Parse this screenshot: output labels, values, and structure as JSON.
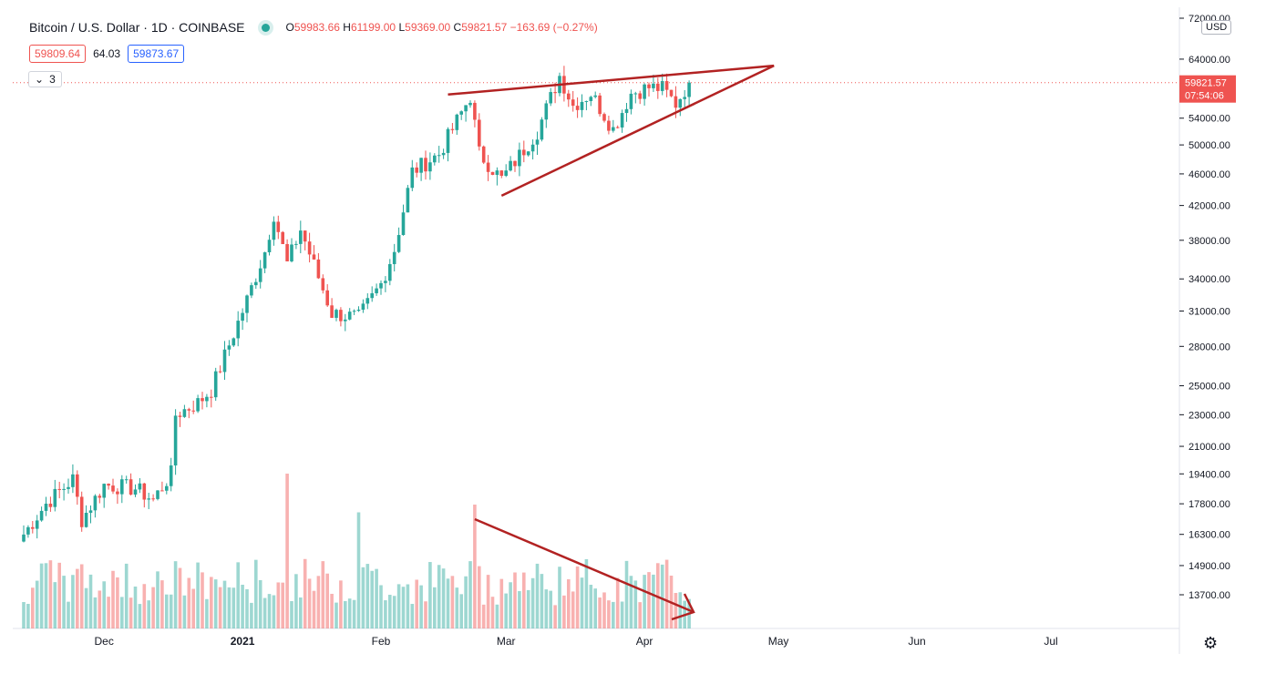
{
  "header": {
    "symbol": "Bitcoin / U.S. Dollar · 1D · COINBASE",
    "open_label": "O",
    "open": "59983.66",
    "high_label": "H",
    "high": "61199.00",
    "low_label": "L",
    "low": "59369.00",
    "close_label": "C",
    "close": "59821.57",
    "change": "−163.69 (−0.27%)"
  },
  "trade": {
    "sell": "59809.64",
    "spread": "64.03",
    "buy": "59873.67"
  },
  "indicators_toggle": {
    "count": "3"
  },
  "currency_button": "USD",
  "price_marker": {
    "price": "59821.57",
    "countdown": "07:54:06"
  },
  "settings_icon": "gear-icon",
  "colors": {
    "up": "#26a69a",
    "down": "#ef5350",
    "drawing": "#b22222",
    "axis": "#131722"
  },
  "chart_data": {
    "type": "candlestick",
    "y_scale": "log",
    "ylim": [
      13000,
      72000
    ],
    "y_ticks": [
      "72000.00",
      "64000.00",
      "54000.00",
      "50000.00",
      "46000.00",
      "42000.00",
      "38000.00",
      "34000.00",
      "31000.00",
      "28000.00",
      "25000.00",
      "23000.00",
      "21000.00",
      "19400.00",
      "17800.00",
      "16300.00",
      "14900.00",
      "13700.00"
    ],
    "x_ticks": [
      "Dec",
      "2021",
      "Feb",
      "Mar",
      "Apr",
      "May",
      "Jun",
      "Jul"
    ],
    "x_tick_dates": [
      "2020-12-01",
      "2021-01-01",
      "2021-02-01",
      "2021-03-01",
      "2021-04-01",
      "2021-05-01",
      "2021-06-01",
      "2021-07-01"
    ],
    "x_range": [
      "2020-11-13",
      "2021-07-30"
    ],
    "grid": false,
    "closes_anchor": [
      [
        "2020-11-13",
        16300
      ],
      [
        "2020-11-18",
        17800
      ],
      [
        "2020-11-24",
        19100
      ],
      [
        "2020-11-26",
        17000
      ],
      [
        "2020-12-01",
        18800
      ],
      [
        "2020-12-08",
        18600
      ],
      [
        "2020-12-12",
        18000
      ],
      [
        "2020-12-16",
        19400
      ],
      [
        "2020-12-17",
        23000
      ],
      [
        "2020-12-22",
        23800
      ],
      [
        "2020-12-25",
        24700
      ],
      [
        "2021-01-02",
        32000
      ],
      [
        "2021-01-06",
        36800
      ],
      [
        "2021-01-08",
        41000
      ],
      [
        "2021-01-11",
        35500
      ],
      [
        "2021-01-14",
        39200
      ],
      [
        "2021-01-21",
        30800
      ],
      [
        "2021-01-27",
        30400
      ],
      [
        "2021-02-01",
        33500
      ],
      [
        "2021-02-04",
        37000
      ],
      [
        "2021-02-08",
        46300
      ],
      [
        "2021-02-14",
        48700
      ],
      [
        "2021-02-21",
        57500
      ],
      [
        "2021-02-23",
        48800
      ],
      [
        "2021-02-28",
        45300
      ],
      [
        "2021-03-04",
        48500
      ],
      [
        "2021-03-08",
        52000
      ],
      [
        "2021-03-13",
        61000
      ],
      [
        "2021-03-16",
        56000
      ],
      [
        "2021-03-20",
        58000
      ],
      [
        "2021-03-25",
        52300
      ],
      [
        "2021-03-29",
        58000
      ],
      [
        "2021-04-02",
        59000
      ],
      [
        "2021-04-05",
        58800
      ],
      [
        "2021-04-08",
        56300
      ],
      [
        "2021-04-11",
        59821.57
      ]
    ],
    "volume_spikes": [
      [
        "2021-01-11",
        1.0
      ],
      [
        "2021-01-27",
        0.75
      ],
      [
        "2021-02-22",
        0.8
      ]
    ],
    "current_price": 59821.57,
    "drawings": [
      {
        "name": "rising-wedge-upper",
        "points": [
          [
            "2021-02-16",
            57800
          ],
          [
            "2021-04-30",
            62800
          ]
        ]
      },
      {
        "name": "rising-wedge-lower",
        "points": [
          [
            "2021-02-28",
            43200
          ],
          [
            "2021-04-30",
            62800
          ]
        ]
      },
      {
        "name": "volume-downtrend-arrow",
        "points": [
          [
            "2021-02-22",
            1.0
          ],
          [
            "2021-04-12",
            0.15
          ]
        ]
      }
    ]
  }
}
